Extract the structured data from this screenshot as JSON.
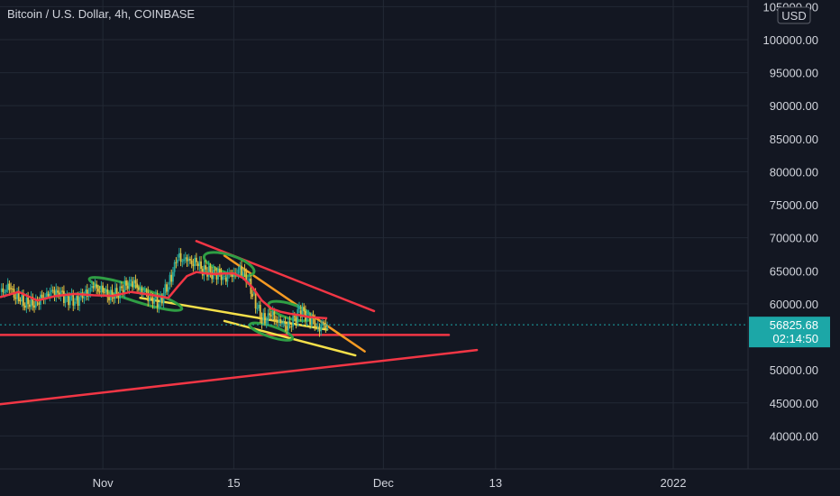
{
  "header": {
    "title": "Bitcoin / U.S. Dollar, 4h, COINBASE"
  },
  "colors": {
    "background": "#131722",
    "grid": "#232834",
    "candle_up": "#26a69a",
    "candle_wick": "#e0c040",
    "ma": "#f23645",
    "trend_red": "#f23645",
    "trend_yellow": "#f5e04a",
    "trend_orange": "#f59a23",
    "marker_green": "#2f9e44",
    "price_badge": "#1ca7a7"
  },
  "chart_data": {
    "type": "line",
    "title": "Bitcoin / U.S. Dollar, 4h, COINBASE",
    "currency": "USD",
    "y_ticks": [
      105000,
      100000,
      95000,
      90000,
      85000,
      80000,
      75000,
      70000,
      65000,
      60000,
      50000,
      45000,
      40000
    ],
    "y_tick_labels": [
      "105000.00",
      "100000.00",
      "95000.00",
      "90000.00",
      "85000.00",
      "80000.00",
      "75000.00",
      "70000.00",
      "65000.00",
      "60000.00",
      "50000.00",
      "45000.00",
      "40000.00"
    ],
    "ylim": [
      35000,
      106000
    ],
    "x_tick_labels": [
      "Nov",
      "15",
      "Dec",
      "13",
      "2022"
    ],
    "x_tick_days": [
      0,
      14,
      30,
      42,
      61
    ],
    "xlim_days": [
      -11,
      69
    ],
    "current_price": {
      "value": 56825.68,
      "label": "56825.68",
      "countdown": "02:14:50"
    },
    "price_series": {
      "name": "",
      "x_days": [
        -11,
        -10,
        -9,
        -8,
        -7,
        -6,
        -5,
        -4,
        -3,
        -2,
        -1,
        0,
        1,
        2,
        3,
        4,
        5,
        6,
        7,
        8,
        9,
        10,
        11,
        12,
        13,
        14,
        15,
        16,
        17,
        18,
        19,
        20,
        21,
        22,
        23,
        24
      ],
      "y": [
        61800,
        62400,
        60600,
        59900,
        60200,
        61500,
        62000,
        61000,
        60500,
        61300,
        62600,
        61800,
        61000,
        62100,
        63400,
        62300,
        61000,
        60200,
        62900,
        67000,
        66500,
        66100,
        64800,
        64700,
        64000,
        64700,
        65200,
        61600,
        57500,
        58300,
        56900,
        56600,
        59000,
        58100,
        56500,
        56900
      ]
    },
    "moving_average": {
      "name": "",
      "x_days": [
        -11,
        -9,
        -7,
        -5,
        -3,
        -1,
        1,
        3,
        5,
        7,
        8,
        9,
        10,
        11,
        12,
        13,
        14,
        15,
        16,
        17,
        18,
        19,
        20,
        21,
        22,
        23,
        24
      ],
      "y": [
        61000,
        61800,
        60500,
        61200,
        61500,
        61300,
        61200,
        61800,
        61400,
        60900,
        62600,
        64200,
        64800,
        64600,
        64500,
        64600,
        64600,
        63900,
        62500,
        60500,
        59300,
        58800,
        58500,
        58300,
        58000,
        57900,
        57800
      ]
    },
    "trendlines": [
      {
        "color": "red",
        "from": [
          10,
          69500
        ],
        "to": [
          29,
          58900
        ]
      },
      {
        "color": "red",
        "from": [
          -11,
          55300
        ],
        "to": [
          37,
          55300
        ]
      },
      {
        "color": "red",
        "from": [
          -11,
          44800
        ],
        "to": [
          40,
          53000
        ]
      },
      {
        "color": "yellow",
        "from": [
          4,
          60900
        ],
        "to": [
          24,
          56100
        ]
      },
      {
        "color": "yellow",
        "from": [
          13,
          57400
        ],
        "to": [
          27,
          52200
        ]
      },
      {
        "color": "orange",
        "from": [
          13,
          67300
        ],
        "to": [
          28,
          52800
        ]
      }
    ]
  }
}
